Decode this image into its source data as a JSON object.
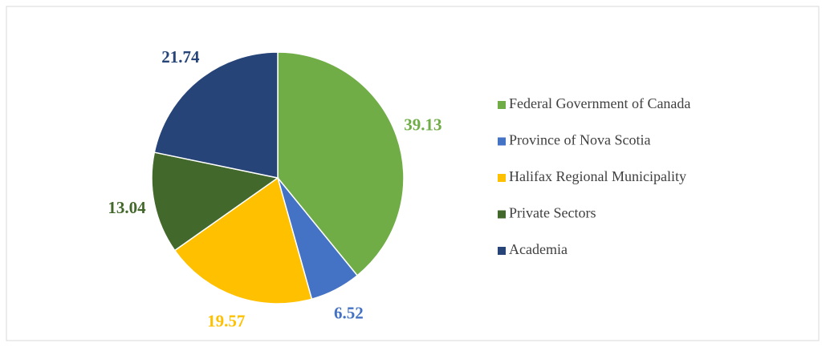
{
  "chart_data": {
    "type": "pie",
    "categories": [
      "Federal Government of Canada",
      "Province of Nova Scotia",
      "Halifax Regional Municipality",
      "Private Sectors",
      "Academia"
    ],
    "values": [
      39.13,
      6.52,
      19.57,
      13.04,
      21.74
    ],
    "colors": [
      "#70ad47",
      "#4472c4",
      "#ffc000",
      "#43682b",
      "#264478"
    ],
    "legend": "right"
  }
}
